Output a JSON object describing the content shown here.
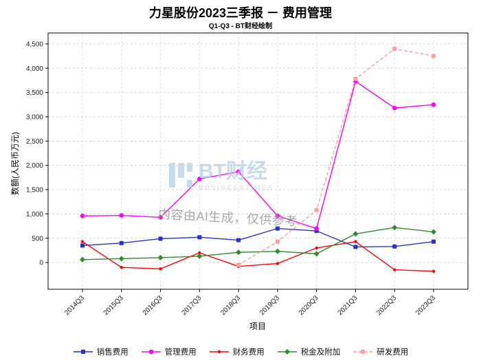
{
  "chart_data": {
    "type": "line",
    "title": "力星股份2023三季报 － 费用管理",
    "subtitle": "Q1-Q3 - BT财经绘制",
    "xlabel": "项目",
    "ylabel": "数额(人民币万元)",
    "categories": [
      "2014Q3",
      "2015Q3",
      "2016Q3",
      "2017Q3",
      "2018Q3",
      "2019Q3",
      "2020Q3",
      "2021Q3",
      "2022Q3",
      "2023Q3"
    ],
    "y_ticks": [
      0,
      500,
      1000,
      1500,
      2000,
      2500,
      3000,
      3500,
      4000,
      4500
    ],
    "ylim": [
      -550,
      4725
    ],
    "grid": {
      "show": true,
      "style": "dashed",
      "color": "#d4d4d4"
    },
    "legend_position": "bottom",
    "series": [
      {
        "name": "销售费用",
        "color": "#2433cc",
        "marker": "square",
        "line": "solid",
        "values": [
          350,
          400,
          490,
          520,
          460,
          700,
          650,
          320,
          330,
          430
        ]
      },
      {
        "name": "管理费用",
        "color": "#ff00ff",
        "marker": "circle",
        "line": "solid",
        "values": [
          960,
          970,
          930,
          1720,
          1870,
          960,
          700,
          3730,
          3180,
          3250
        ]
      },
      {
        "name": "财务费用",
        "color": "#ff0000",
        "marker": "dot",
        "line": "solid",
        "values": [
          430,
          -100,
          -130,
          200,
          -80,
          -20,
          300,
          430,
          -150,
          -180
        ]
      },
      {
        "name": "税金及附加",
        "color": "#2f8b2f",
        "marker": "diamond",
        "line": "solid",
        "values": [
          60,
          80,
          100,
          130,
          210,
          230,
          180,
          590,
          720,
          630
        ]
      },
      {
        "name": "研发费用",
        "color": "#ff9f9f",
        "marker": "square",
        "line": "dashed",
        "values": [
          null,
          null,
          null,
          null,
          -50,
          430,
          1080,
          3780,
          4400,
          4250
        ]
      }
    ]
  },
  "watermark": {
    "brand": "BT财经",
    "brand_sub": "BUSINESSTIMES",
    "note": "内容由AI生成，仅供参考",
    "color": "#afcce4",
    "note_color": "#9a9a9a"
  }
}
